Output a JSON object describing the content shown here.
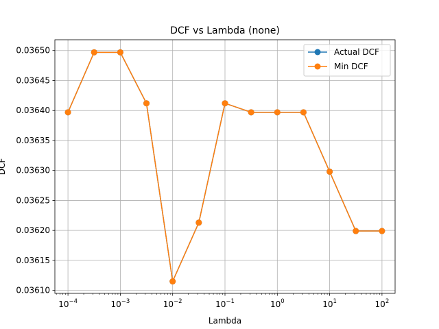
{
  "chart_data": {
    "type": "line",
    "title": "DCF vs Lambda (none)",
    "xlabel": "Lambda",
    "ylabel": "DCF",
    "x_scale": "log",
    "x": [
      0.0001,
      0.000316,
      0.001,
      0.00316,
      0.01,
      0.0316,
      0.1,
      0.316,
      1,
      3.16,
      10,
      31.6,
      100
    ],
    "xlim": [
      5.62e-05,
      178
    ],
    "ylim": [
      0.036095,
      0.036518
    ],
    "x_ticks": [
      {
        "value": 0.0001,
        "base": "10",
        "exp": "−4"
      },
      {
        "value": 0.001,
        "base": "10",
        "exp": "−3"
      },
      {
        "value": 0.01,
        "base": "10",
        "exp": "−2"
      },
      {
        "value": 0.1,
        "base": "10",
        "exp": "−1"
      },
      {
        "value": 1,
        "base": "10",
        "exp": "0"
      },
      {
        "value": 10,
        "base": "10",
        "exp": "1"
      },
      {
        "value": 100,
        "base": "10",
        "exp": "2"
      }
    ],
    "y_ticks": [
      {
        "value": 0.0361,
        "label": "0.03610"
      },
      {
        "value": 0.03615,
        "label": "0.03615"
      },
      {
        "value": 0.0362,
        "label": "0.03620"
      },
      {
        "value": 0.03625,
        "label": "0.03625"
      },
      {
        "value": 0.0363,
        "label": "0.03630"
      },
      {
        "value": 0.03635,
        "label": "0.03635"
      },
      {
        "value": 0.0364,
        "label": "0.03640"
      },
      {
        "value": 0.03645,
        "label": "0.03645"
      },
      {
        "value": 0.0365,
        "label": "0.03650"
      }
    ],
    "grid": true,
    "legend_position": "top-right",
    "series": [
      {
        "name": "Actual DCF",
        "color": "#1f77b4",
        "values": [
          0.036397,
          0.036497,
          0.036497,
          0.036412,
          0.036115,
          0.036213,
          0.036412,
          0.036397,
          0.036397,
          0.036397,
          0.036298,
          0.036199,
          0.036199
        ]
      },
      {
        "name": "Min DCF",
        "color": "#ff7f0e",
        "values": [
          0.036397,
          0.036497,
          0.036497,
          0.036412,
          0.036115,
          0.036213,
          0.036412,
          0.036397,
          0.036397,
          0.036397,
          0.036298,
          0.036199,
          0.036199
        ]
      }
    ]
  }
}
